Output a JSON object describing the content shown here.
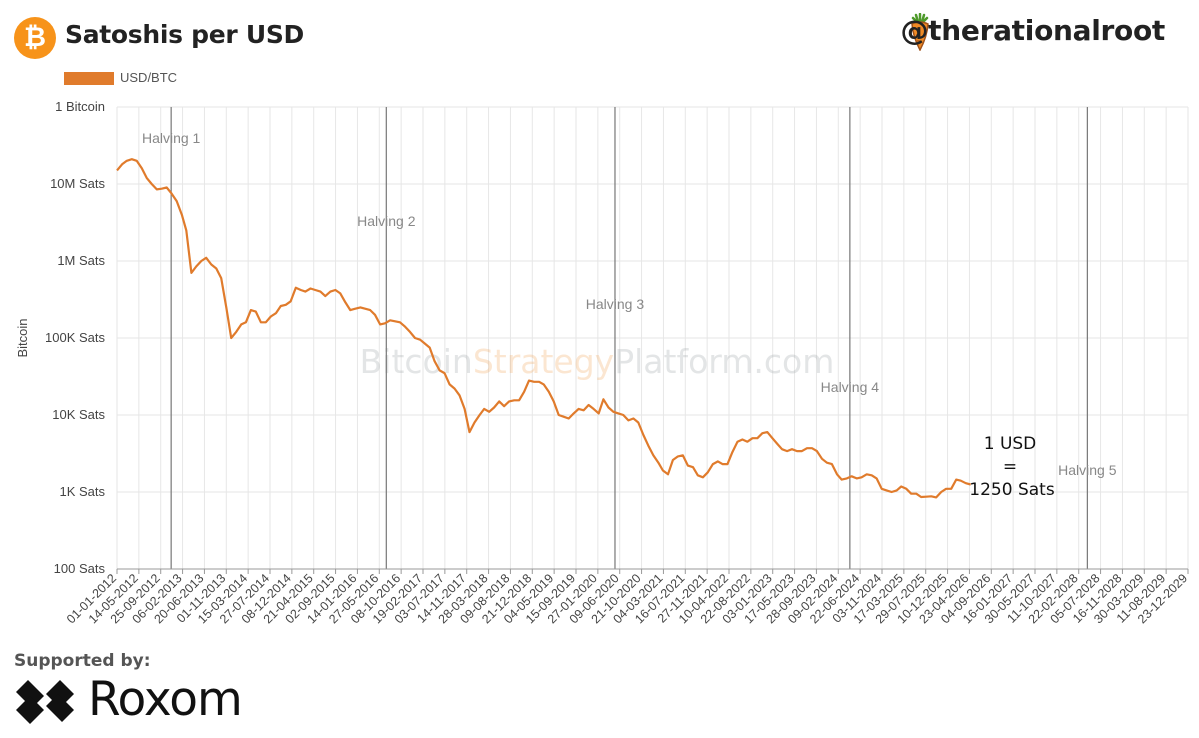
{
  "header": {
    "title": "Satoshis per USD",
    "handle": "@therationalroot",
    "logo_glyph": "₿",
    "brand_color": "#f7931a"
  },
  "watermark": {
    "part1": "Bitcoin",
    "part2": "Strategy",
    "part3": "Platform.com"
  },
  "footer": {
    "supported_label": "Supported by:",
    "sponsor_name": "Roxom"
  },
  "chart_data": {
    "type": "line",
    "title": "Satoshis per USD",
    "ylabel": "Bitcoin",
    "xlabel": "",
    "y_scale": "log",
    "y_ticks": [
      {
        "value": 100,
        "label": "100 Sats"
      },
      {
        "value": 1000,
        "label": "1K Sats"
      },
      {
        "value": 10000,
        "label": "10K Sats"
      },
      {
        "value": 100000,
        "label": "100K Sats"
      },
      {
        "value": 1000000,
        "label": "1M Sats"
      },
      {
        "value": 10000000,
        "label": "10M Sats"
      },
      {
        "value": 100000000,
        "label": "1 Bitcoin"
      }
    ],
    "ylim": [
      100,
      100000000
    ],
    "xlim": [
      "2012-01-01",
      "2029-12-23"
    ],
    "x_ticks": [
      "01-01-2012",
      "14-05-2012",
      "25-09-2012",
      "06-02-2013",
      "20-06-2013",
      "01-11-2013",
      "15-03-2014",
      "27-07-2014",
      "08-12-2014",
      "21-04-2015",
      "02-09-2015",
      "14-01-2016",
      "27-05-2016",
      "08-10-2016",
      "19-02-2017",
      "03-07-2017",
      "14-11-2017",
      "28-03-2018",
      "09-08-2018",
      "21-12-2018",
      "04-05-2019",
      "15-09-2019",
      "27-01-2020",
      "09-06-2020",
      "21-10-2020",
      "04-03-2021",
      "16-07-2021",
      "27-11-2021",
      "10-04-2022",
      "22-08-2022",
      "03-01-2023",
      "17-05-2023",
      "28-09-2023",
      "09-02-2024",
      "22-06-2024",
      "03-11-2024",
      "17-03-2025",
      "29-07-2025",
      "10-12-2025",
      "23-04-2026",
      "04-09-2026",
      "16-01-2027",
      "30-05-2027",
      "11-10-2027",
      "22-02-2028",
      "05-07-2028",
      "16-11-2028",
      "30-03-2029",
      "11-08-2029",
      "23-12-2029"
    ],
    "grid": true,
    "legend": {
      "position": "top-left",
      "entries": [
        {
          "name": "USD/BTC",
          "color": "#e07b2c"
        }
      ]
    },
    "series": [
      {
        "name": "USD/BTC",
        "color": "#e07b2c",
        "points": [
          [
            "2012-01-01",
            15000000
          ],
          [
            "2012-02-01",
            18000000
          ],
          [
            "2012-03-01",
            20000000
          ],
          [
            "2012-04-01",
            21000000
          ],
          [
            "2012-05-01",
            20000000
          ],
          [
            "2012-06-01",
            16000000
          ],
          [
            "2012-07-01",
            12000000
          ],
          [
            "2012-08-01",
            10000000
          ],
          [
            "2012-09-01",
            8500000
          ],
          [
            "2012-10-01",
            8700000
          ],
          [
            "2012-11-01",
            9000000
          ],
          [
            "2012-12-01",
            7500000
          ],
          [
            "2013-01-01",
            6000000
          ],
          [
            "2013-02-01",
            4000000
          ],
          [
            "2013-03-01",
            2500000
          ],
          [
            "2013-04-01",
            700000
          ],
          [
            "2013-05-01",
            850000
          ],
          [
            "2013-06-01",
            1000000
          ],
          [
            "2013-07-01",
            1100000
          ],
          [
            "2013-08-01",
            900000
          ],
          [
            "2013-09-01",
            800000
          ],
          [
            "2013-10-01",
            600000
          ],
          [
            "2013-11-01",
            250000
          ],
          [
            "2013-12-01",
            100000
          ],
          [
            "2014-01-01",
            120000
          ],
          [
            "2014-02-01",
            150000
          ],
          [
            "2014-03-01",
            160000
          ],
          [
            "2014-04-01",
            230000
          ],
          [
            "2014-05-01",
            220000
          ],
          [
            "2014-06-01",
            160000
          ],
          [
            "2014-07-01",
            160000
          ],
          [
            "2014-08-01",
            190000
          ],
          [
            "2014-09-01",
            210000
          ],
          [
            "2014-10-01",
            260000
          ],
          [
            "2014-11-01",
            270000
          ],
          [
            "2014-12-01",
            300000
          ],
          [
            "2015-01-01",
            450000
          ],
          [
            "2015-02-01",
            420000
          ],
          [
            "2015-03-01",
            400000
          ],
          [
            "2015-04-01",
            440000
          ],
          [
            "2015-05-01",
            420000
          ],
          [
            "2015-06-01",
            400000
          ],
          [
            "2015-07-01",
            350000
          ],
          [
            "2015-08-01",
            400000
          ],
          [
            "2015-09-01",
            420000
          ],
          [
            "2015-10-01",
            380000
          ],
          [
            "2015-11-01",
            290000
          ],
          [
            "2015-12-01",
            230000
          ],
          [
            "2016-01-01",
            240000
          ],
          [
            "2016-02-01",
            250000
          ],
          [
            "2016-03-01",
            240000
          ],
          [
            "2016-04-01",
            230000
          ],
          [
            "2016-05-01",
            200000
          ],
          [
            "2016-06-01",
            150000
          ],
          [
            "2016-07-01",
            155000
          ],
          [
            "2016-08-01",
            170000
          ],
          [
            "2016-09-01",
            165000
          ],
          [
            "2016-10-01",
            160000
          ],
          [
            "2016-11-01",
            140000
          ],
          [
            "2016-12-01",
            120000
          ],
          [
            "2017-01-01",
            100000
          ],
          [
            "2017-02-01",
            95000
          ],
          [
            "2017-03-01",
            85000
          ],
          [
            "2017-04-01",
            75000
          ],
          [
            "2017-05-01",
            50000
          ],
          [
            "2017-06-01",
            38000
          ],
          [
            "2017-07-01",
            35000
          ],
          [
            "2017-08-01",
            25000
          ],
          [
            "2017-09-01",
            22000
          ],
          [
            "2017-10-01",
            18000
          ],
          [
            "2017-11-01",
            12000
          ],
          [
            "2017-12-01",
            6000
          ],
          [
            "2018-01-01",
            8000
          ],
          [
            "2018-02-01",
            10000
          ],
          [
            "2018-03-01",
            12000
          ],
          [
            "2018-04-01",
            11000
          ],
          [
            "2018-05-01",
            12500
          ],
          [
            "2018-06-01",
            15000
          ],
          [
            "2018-07-01",
            13000
          ],
          [
            "2018-08-01",
            15000
          ],
          [
            "2018-09-01",
            15500
          ],
          [
            "2018-10-01",
            15500
          ],
          [
            "2018-11-01",
            20000
          ],
          [
            "2018-12-01",
            28000
          ],
          [
            "2019-01-01",
            27000
          ],
          [
            "2019-02-01",
            27000
          ],
          [
            "2019-03-01",
            25000
          ],
          [
            "2019-04-01",
            20000
          ],
          [
            "2019-05-01",
            15000
          ],
          [
            "2019-06-01",
            10000
          ],
          [
            "2019-07-01",
            9500
          ],
          [
            "2019-08-01",
            9000
          ],
          [
            "2019-09-01",
            10500
          ],
          [
            "2019-10-01",
            12000
          ],
          [
            "2019-11-01",
            11500
          ],
          [
            "2019-12-01",
            13500
          ],
          [
            "2020-01-01",
            12000
          ],
          [
            "2020-02-01",
            10500
          ],
          [
            "2020-03-01",
            16000
          ],
          [
            "2020-04-01",
            12500
          ],
          [
            "2020-05-01",
            11000
          ],
          [
            "2020-06-01",
            10500
          ],
          [
            "2020-07-01",
            10000
          ],
          [
            "2020-08-01",
            8500
          ],
          [
            "2020-09-01",
            9000
          ],
          [
            "2020-10-01",
            8000
          ],
          [
            "2020-11-01",
            5500
          ],
          [
            "2020-12-01",
            4000
          ],
          [
            "2021-01-01",
            3000
          ],
          [
            "2021-02-01",
            2400
          ],
          [
            "2021-03-01",
            1900
          ],
          [
            "2021-04-01",
            1700
          ],
          [
            "2021-05-01",
            2600
          ],
          [
            "2021-06-01",
            2900
          ],
          [
            "2021-07-01",
            3000
          ],
          [
            "2021-08-01",
            2200
          ],
          [
            "2021-09-01",
            2100
          ],
          [
            "2021-10-01",
            1650
          ],
          [
            "2021-11-01",
            1550
          ],
          [
            "2021-12-01",
            1800
          ],
          [
            "2022-01-01",
            2300
          ],
          [
            "2022-02-01",
            2500
          ],
          [
            "2022-03-01",
            2300
          ],
          [
            "2022-04-01",
            2300
          ],
          [
            "2022-05-01",
            3300
          ],
          [
            "2022-06-01",
            4500
          ],
          [
            "2022-07-01",
            4800
          ],
          [
            "2022-08-01",
            4500
          ],
          [
            "2022-09-01",
            5000
          ],
          [
            "2022-10-01",
            5000
          ],
          [
            "2022-11-01",
            5800
          ],
          [
            "2022-12-01",
            6000
          ],
          [
            "2023-01-01",
            5000
          ],
          [
            "2023-02-01",
            4200
          ],
          [
            "2023-03-01",
            3600
          ],
          [
            "2023-04-01",
            3400
          ],
          [
            "2023-05-01",
            3600
          ],
          [
            "2023-06-01",
            3400
          ],
          [
            "2023-07-01",
            3400
          ],
          [
            "2023-08-01",
            3700
          ],
          [
            "2023-09-01",
            3700
          ],
          [
            "2023-10-01",
            3400
          ],
          [
            "2023-11-01",
            2700
          ],
          [
            "2023-12-01",
            2400
          ],
          [
            "2024-01-01",
            2300
          ],
          [
            "2024-02-01",
            1700
          ],
          [
            "2024-03-01",
            1450
          ],
          [
            "2024-04-01",
            1500
          ],
          [
            "2024-05-01",
            1600
          ],
          [
            "2024-06-01",
            1500
          ],
          [
            "2024-07-01",
            1550
          ],
          [
            "2024-08-01",
            1700
          ],
          [
            "2024-09-01",
            1650
          ],
          [
            "2024-10-01",
            1500
          ],
          [
            "2024-11-01",
            1100
          ],
          [
            "2024-12-01",
            1050
          ],
          [
            "2025-01-01",
            1000
          ],
          [
            "2025-02-01",
            1050
          ],
          [
            "2025-03-01",
            1180
          ],
          [
            "2025-04-01",
            1100
          ],
          [
            "2025-05-01",
            950
          ],
          [
            "2025-06-01",
            950
          ],
          [
            "2025-07-01",
            860
          ],
          [
            "2025-08-01",
            870
          ],
          [
            "2025-09-01",
            880
          ],
          [
            "2025-10-01",
            850
          ],
          [
            "2025-11-01",
            1000
          ],
          [
            "2025-12-01",
            1100
          ],
          [
            "2026-01-01",
            1100
          ],
          [
            "2026-02-01",
            1450
          ],
          [
            "2026-03-01",
            1400
          ],
          [
            "2026-04-01",
            1300
          ],
          [
            "2026-05-01",
            1250
          ]
        ]
      }
    ],
    "halvings": [
      {
        "label": "Halving 1",
        "date": "2012-11-28"
      },
      {
        "label": "Halving 2",
        "date": "2016-07-09"
      },
      {
        "label": "Halving 3",
        "date": "2020-05-11"
      },
      {
        "label": "Halving 4",
        "date": "2024-04-20"
      },
      {
        "label": "Halving 5",
        "date": "2028-04-15"
      }
    ],
    "annotation": {
      "line1": "1 USD",
      "line2": "=",
      "line3": "1250 Sats"
    }
  }
}
